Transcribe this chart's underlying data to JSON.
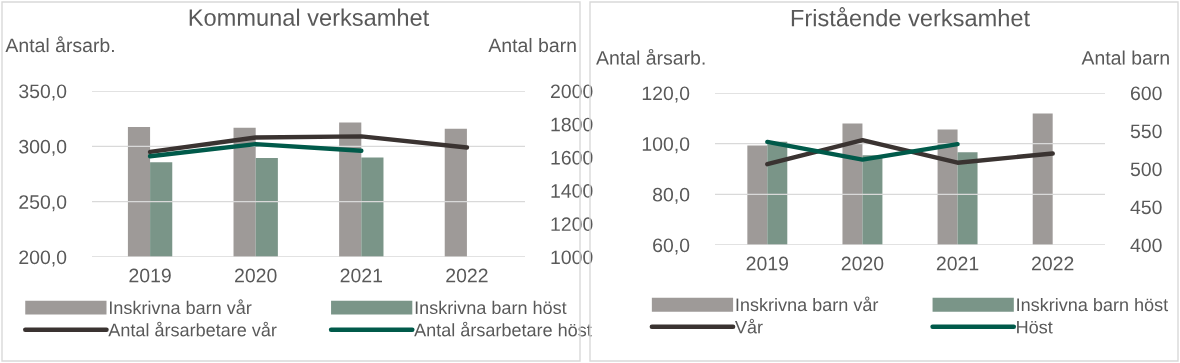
{
  "chart_data": [
    {
      "type": "bar",
      "title": "Kommunal verksamhet",
      "ylabel": "Antal årsarb.",
      "y2label": "Antal barn",
      "categories": [
        "2019",
        "2020",
        "2021",
        "2022"
      ],
      "series": [
        {
          "name": "Inskrivna barn vår",
          "axis": "y2",
          "color": "#9e9a98",
          "values": [
            1783,
            1779,
            1810,
            1772
          ]
        },
        {
          "name": "Inskrivna barn höst",
          "axis": "y2",
          "color": "#7a9588",
          "values": [
            1571,
            1596,
            1600,
            null
          ]
        },
        {
          "name": "Antal årsarbetare vår",
          "type": "line",
          "axis": "y",
          "color": "#3a3331",
          "values": [
            295,
            308,
            309,
            299
          ]
        },
        {
          "name": "Antal årsarbetare höst",
          "type": "line",
          "axis": "y",
          "color": "#005a4a",
          "values": [
            291,
            302,
            296,
            null
          ]
        }
      ],
      "ylim": [
        200,
        350
      ],
      "yticks": [
        {
          "value": 200,
          "label": "200,0"
        },
        {
          "value": 250,
          "label": "250,0"
        },
        {
          "value": 300,
          "label": "300,0"
        },
        {
          "value": 350,
          "label": "350,0"
        }
      ],
      "y2lim": [
        1000,
        2000
      ],
      "y2ticks": [
        1000,
        1200,
        1400,
        1600,
        1800,
        2000
      ],
      "grid": "y",
      "legend": "bottom",
      "marker": "none",
      "line_style": "solid"
    },
    {
      "type": "bar",
      "title": "Fristående verksamhet",
      "ylabel": "Antal årsarb.",
      "y2label": "Antal barn",
      "categories": [
        "2019",
        "2020",
        "2021",
        "2022"
      ],
      "series": [
        {
          "name": "Inskrivna barn vår",
          "axis": "y2",
          "color": "#9e9a98",
          "values": [
            531,
            560,
            552,
            573
          ]
        },
        {
          "name": "Inskrivna barn höst",
          "axis": "y2",
          "color": "#7a9588",
          "values": [
            536,
            518,
            522,
            null
          ]
        },
        {
          "name": "Vår",
          "type": "line",
          "axis": "y",
          "color": "#3a3331",
          "values": [
            91.9,
            101.4,
            92.5,
            96.1
          ]
        },
        {
          "name": "Höst",
          "type": "line",
          "axis": "y",
          "color": "#005a4a",
          "values": [
            100.7,
            93.7,
            99.8,
            null
          ]
        }
      ],
      "ylim": [
        60,
        120
      ],
      "yticks": [
        {
          "value": 60,
          "label": "60,0"
        },
        {
          "value": 80,
          "label": "80,0"
        },
        {
          "value": 100,
          "label": "100,0"
        },
        {
          "value": 120,
          "label": "120,0"
        }
      ],
      "y2lim": [
        400,
        600
      ],
      "y2ticks": [
        400,
        450,
        500,
        550,
        600
      ],
      "grid": "y",
      "legend": "bottom",
      "marker": "none",
      "line_style": "solid"
    }
  ]
}
